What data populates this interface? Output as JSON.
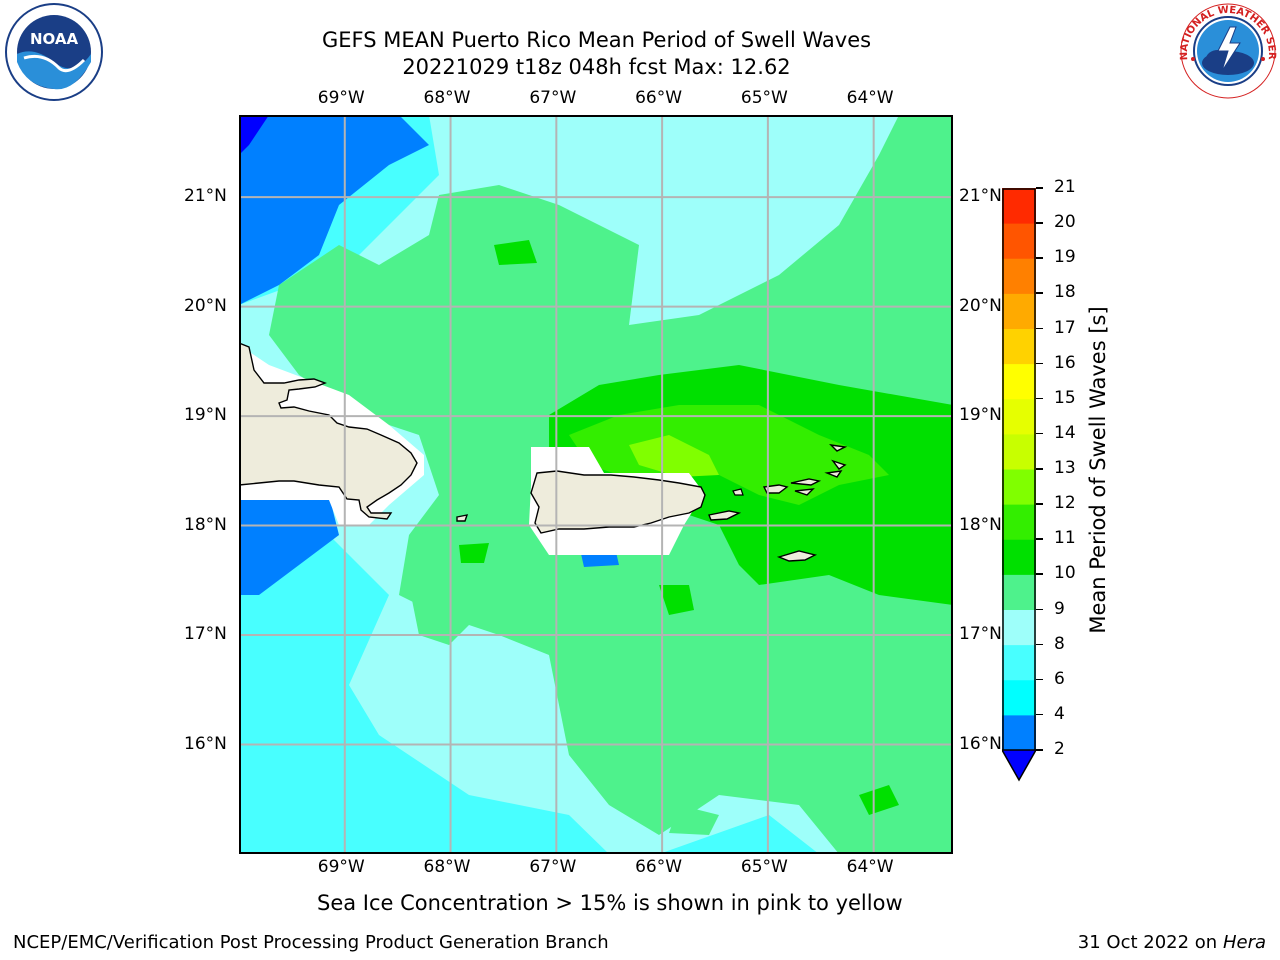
{
  "title": {
    "line1": "GEFS MEAN Puerto Rico Mean Period of Swell Waves",
    "line2": "20221029 t18z 048h fcst   Max: 12.62"
  },
  "logos": {
    "left": {
      "name": "noaa-logo",
      "text": "NOAA",
      "ring_text": "NATIONAL OCEANIC AND ATMOSPHERIC ADMINISTRATION · U.S. DEPARTMENT OF COMMERCE"
    },
    "right": {
      "name": "nws-logo",
      "ring_text": "NATIONAL WEATHER SERVICE"
    }
  },
  "map": {
    "lon_ticks": [
      "69°W",
      "68°W",
      "67°W",
      "66°W",
      "65°W",
      "64°W"
    ],
    "lat_ticks": [
      "21°N",
      "20°N",
      "19°N",
      "18°N",
      "17°N",
      "16°N"
    ],
    "lon_values": [
      -69,
      -68,
      -67,
      -66,
      -65,
      -64
    ],
    "lat_values": [
      21,
      20,
      19,
      18,
      17,
      16
    ],
    "lon_range": [
      -70.0,
      -63.25
    ],
    "lat_range": [
      15.0,
      21.75
    ],
    "grid": true,
    "colors": {
      "land": "#eeecdc",
      "masked": "#ffffff",
      "grid": "#b4b4b4"
    }
  },
  "colorbar": {
    "label": "Mean Period of Swell Waves [s]",
    "levels": [
      "2",
      "4",
      "6",
      "8",
      "9",
      "10",
      "11",
      "12",
      "13",
      "14",
      "15",
      "16",
      "17",
      "18",
      "19",
      "20",
      "21"
    ],
    "colors": [
      "#0080ff",
      "#00ffff",
      "#48ffff",
      "#9efffa",
      "#4ef28c",
      "#00e000",
      "#33ee00",
      "#80ff00",
      "#c8ff00",
      "#e6ff00",
      "#ffff00",
      "#ffd200",
      "#ffaa00",
      "#ff8000",
      "#ff5500",
      "#ff2a00"
    ],
    "extend_color": "#0000ff"
  },
  "caption": "Sea Ice Concentration > 15% is shown in pink to yellow",
  "footer": {
    "left": "NCEP/EMC/Verification Post Processing Product Generation Branch",
    "right_prefix": "31 Oct 2022 on ",
    "right_italic": "Hera"
  }
}
